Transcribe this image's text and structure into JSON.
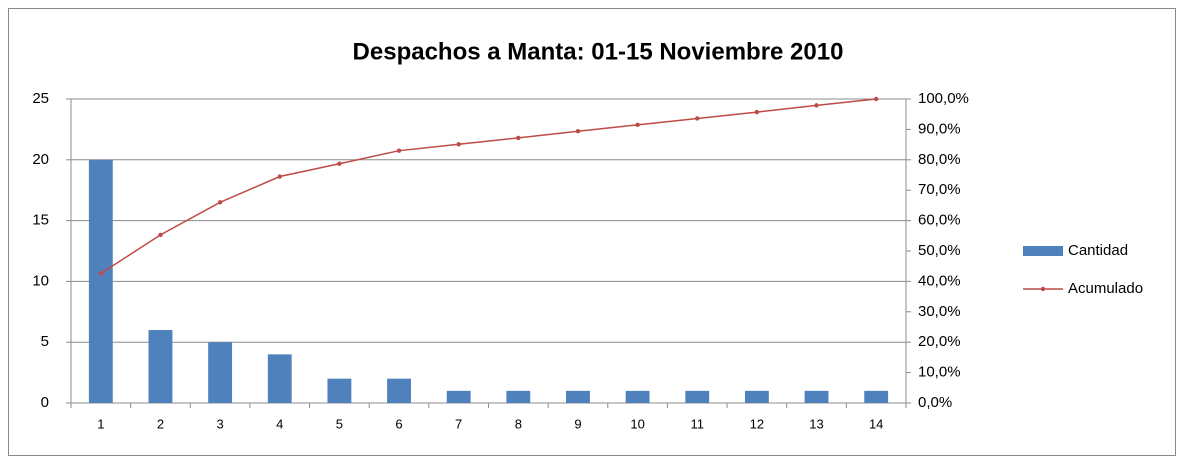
{
  "chart_data": {
    "type": "bar",
    "title": "Despachos a Manta: 01-15 Noviembre 2010",
    "categories": [
      "1",
      "2",
      "3",
      "4",
      "5",
      "6",
      "7",
      "8",
      "9",
      "10",
      "11",
      "12",
      "13",
      "14"
    ],
    "series": [
      {
        "name": "Cantidad",
        "type": "bar",
        "color": "#4f81bd",
        "values": [
          20,
          6,
          5,
          4,
          2,
          2,
          1,
          1,
          1,
          1,
          1,
          1,
          1,
          1
        ]
      },
      {
        "name": "Acumulado",
        "type": "line",
        "axis": "y2",
        "color": "#be4b48",
        "values": [
          42.6,
          55.3,
          66.0,
          74.5,
          78.7,
          83.0,
          85.1,
          87.2,
          89.4,
          91.5,
          93.6,
          95.7,
          97.9,
          100.0
        ]
      }
    ],
    "ylim": [
      0,
      25
    ],
    "yticks": [
      0,
      5,
      10,
      15,
      20,
      25
    ],
    "y2lim": [
      0,
      100
    ],
    "y2ticks": [
      {
        "value": 0,
        "label": "0,0%"
      },
      {
        "value": 10,
        "label": "10,0%"
      },
      {
        "value": 20,
        "label": "20,0%"
      },
      {
        "value": 30,
        "label": "30,0%"
      },
      {
        "value": 40,
        "label": "40,0%"
      },
      {
        "value": 50,
        "label": "50,0%"
      },
      {
        "value": 60,
        "label": "60,0%"
      },
      {
        "value": 70,
        "label": "70,0%"
      },
      {
        "value": 80,
        "label": "80,0%"
      },
      {
        "value": 90,
        "label": "90,0%"
      },
      {
        "value": 100,
        "label": "100,0%"
      }
    ],
    "grid": true,
    "legend": "right"
  }
}
